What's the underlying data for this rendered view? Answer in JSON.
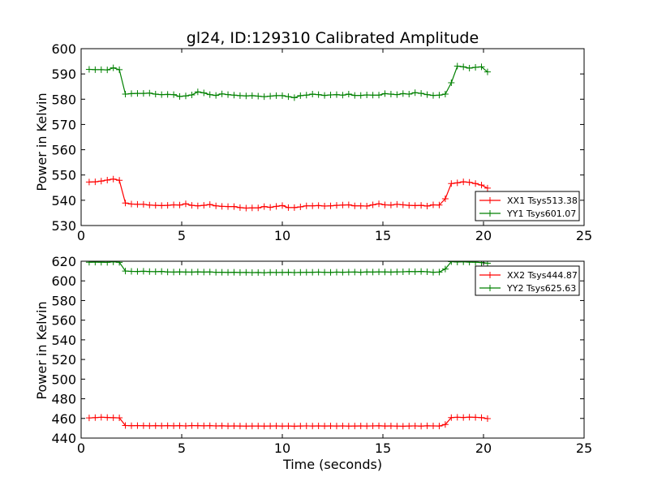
{
  "chart_data": [
    {
      "type": "line",
      "title": "gl24, ID:129310 Calibrated Amplitude",
      "xlabel": "",
      "ylabel": "Power in Kelvin",
      "xlim": [
        0,
        25
      ],
      "ylim": [
        530,
        600
      ],
      "xticks": [
        0,
        5,
        10,
        15,
        20,
        25
      ],
      "yticks": [
        530,
        540,
        550,
        560,
        570,
        580,
        590,
        600
      ],
      "grid": false,
      "legend": "lower-right",
      "x": [
        0.4,
        0.7,
        1.0,
        1.3,
        1.6,
        1.9,
        2.2,
        2.5,
        2.8,
        3.1,
        3.4,
        3.7,
        4.0,
        4.3,
        4.6,
        4.9,
        5.2,
        5.5,
        5.8,
        6.1,
        6.4,
        6.7,
        7.0,
        7.3,
        7.6,
        7.9,
        8.2,
        8.5,
        8.8,
        9.1,
        9.4,
        9.7,
        10.0,
        10.3,
        10.6,
        10.9,
        11.2,
        11.5,
        11.8,
        12.1,
        12.4,
        12.7,
        13.0,
        13.3,
        13.6,
        13.9,
        14.2,
        14.5,
        14.8,
        15.1,
        15.4,
        15.7,
        16.0,
        16.3,
        16.6,
        16.9,
        17.2,
        17.5,
        17.8,
        18.1,
        18.4,
        18.7,
        19.0,
        19.3,
        19.6,
        19.9,
        20.2
      ],
      "series": [
        {
          "name": "XX1 Tsys513.38",
          "color": "#ff0000",
          "values": [
            547.2,
            547.3,
            547.6,
            548.0,
            548.4,
            547.9,
            538.9,
            538.5,
            538.4,
            538.4,
            538.1,
            538.0,
            537.9,
            538.0,
            538.2,
            538.1,
            538.6,
            538.0,
            537.8,
            538.0,
            538.3,
            537.8,
            537.6,
            537.5,
            537.5,
            537.1,
            536.9,
            537.0,
            537.0,
            537.5,
            537.2,
            537.6,
            537.9,
            537.1,
            537.1,
            537.4,
            537.8,
            537.8,
            537.9,
            537.7,
            537.8,
            538.0,
            538.1,
            538.2,
            537.8,
            537.8,
            537.7,
            538.2,
            538.6,
            538.2,
            538.1,
            538.4,
            538.2,
            538.0,
            537.9,
            538.0,
            537.7,
            538.2,
            538.1,
            540.6,
            546.6,
            546.9,
            547.3,
            547.1,
            546.6,
            546.0,
            544.8
          ]
        },
        {
          "name": "YY1 Tsys601.07",
          "color": "#008000",
          "values": [
            591.8,
            591.7,
            591.7,
            591.6,
            592.4,
            591.7,
            582.0,
            582.2,
            582.3,
            582.3,
            582.4,
            582.0,
            581.8,
            581.9,
            581.8,
            581.1,
            581.3,
            581.7,
            582.9,
            582.5,
            581.8,
            581.5,
            582.1,
            581.8,
            581.6,
            581.4,
            581.3,
            581.4,
            581.2,
            581.0,
            581.2,
            581.4,
            581.4,
            581.0,
            580.6,
            581.4,
            581.6,
            582.0,
            581.8,
            581.5,
            581.7,
            581.8,
            581.6,
            582.0,
            581.5,
            581.5,
            581.7,
            581.6,
            581.6,
            582.2,
            582.0,
            581.8,
            582.2,
            582.0,
            582.6,
            582.3,
            581.8,
            581.5,
            581.6,
            582.0,
            586.5,
            593.1,
            592.8,
            592.3,
            592.6,
            592.8,
            590.8
          ]
        }
      ]
    },
    {
      "type": "line",
      "title": "",
      "xlabel": "Time (seconds)",
      "ylabel": "Power in Kelvin",
      "xlim": [
        0,
        25
      ],
      "ylim": [
        440,
        620
      ],
      "xticks": [
        0,
        5,
        10,
        15,
        20,
        25
      ],
      "yticks": [
        440,
        460,
        480,
        500,
        520,
        540,
        560,
        580,
        600,
        620
      ],
      "grid": false,
      "legend": "top-right",
      "x": [
        0.4,
        0.7,
        1.0,
        1.3,
        1.6,
        1.9,
        2.2,
        2.5,
        2.8,
        3.1,
        3.4,
        3.7,
        4.0,
        4.3,
        4.6,
        4.9,
        5.2,
        5.5,
        5.8,
        6.1,
        6.4,
        6.7,
        7.0,
        7.3,
        7.6,
        7.9,
        8.2,
        8.5,
        8.8,
        9.1,
        9.4,
        9.7,
        10.0,
        10.3,
        10.6,
        10.9,
        11.2,
        11.5,
        11.8,
        12.1,
        12.4,
        12.7,
        13.0,
        13.3,
        13.6,
        13.9,
        14.2,
        14.5,
        14.8,
        15.1,
        15.4,
        15.7,
        16.0,
        16.3,
        16.6,
        16.9,
        17.2,
        17.5,
        17.8,
        18.1,
        18.4,
        18.7,
        19.0,
        19.3,
        19.6,
        19.9,
        20.2
      ],
      "series": [
        {
          "name": "XX2 Tsys444.87",
          "color": "#ff0000",
          "values": [
            460.5,
            460.8,
            461.2,
            461.0,
            460.7,
            460.6,
            452.8,
            452.6,
            452.7,
            452.6,
            452.5,
            452.6,
            452.5,
            452.6,
            452.5,
            452.6,
            452.4,
            452.7,
            452.6,
            452.5,
            452.6,
            452.4,
            452.5,
            452.3,
            452.4,
            452.3,
            452.2,
            452.3,
            452.3,
            452.2,
            452.3,
            452.4,
            452.2,
            452.3,
            452.1,
            452.3,
            452.4,
            452.3,
            452.4,
            452.3,
            452.4,
            452.3,
            452.4,
            452.2,
            452.3,
            452.4,
            452.3,
            452.4,
            452.5,
            452.3,
            452.4,
            452.2,
            452.1,
            452.3,
            452.4,
            452.2,
            452.5,
            452.4,
            452.3,
            453.8,
            460.9,
            461.2,
            461.0,
            461.3,
            461.1,
            460.8,
            459.8
          ]
        },
        {
          "name": "YY2 Tsys625.63",
          "color": "#008000",
          "values": [
            619.0,
            619.1,
            619.0,
            618.9,
            619.3,
            618.9,
            610.0,
            609.7,
            609.6,
            609.8,
            609.5,
            609.4,
            609.6,
            609.1,
            609.0,
            609.2,
            609.0,
            608.9,
            609.2,
            609.0,
            609.1,
            608.7,
            608.8,
            608.6,
            608.8,
            608.5,
            608.6,
            608.4,
            608.5,
            608.3,
            608.6,
            608.5,
            608.6,
            608.7,
            608.4,
            608.6,
            608.7,
            608.8,
            608.9,
            608.7,
            608.6,
            608.9,
            608.8,
            608.9,
            609.0,
            608.8,
            609.1,
            609.0,
            609.2,
            609.1,
            608.9,
            609.2,
            609.3,
            609.5,
            609.4,
            609.6,
            609.3,
            608.8,
            609.0,
            612.1,
            619.6,
            619.2,
            619.4,
            619.1,
            619.0,
            618.7,
            617.9
          ]
        }
      ]
    }
  ]
}
